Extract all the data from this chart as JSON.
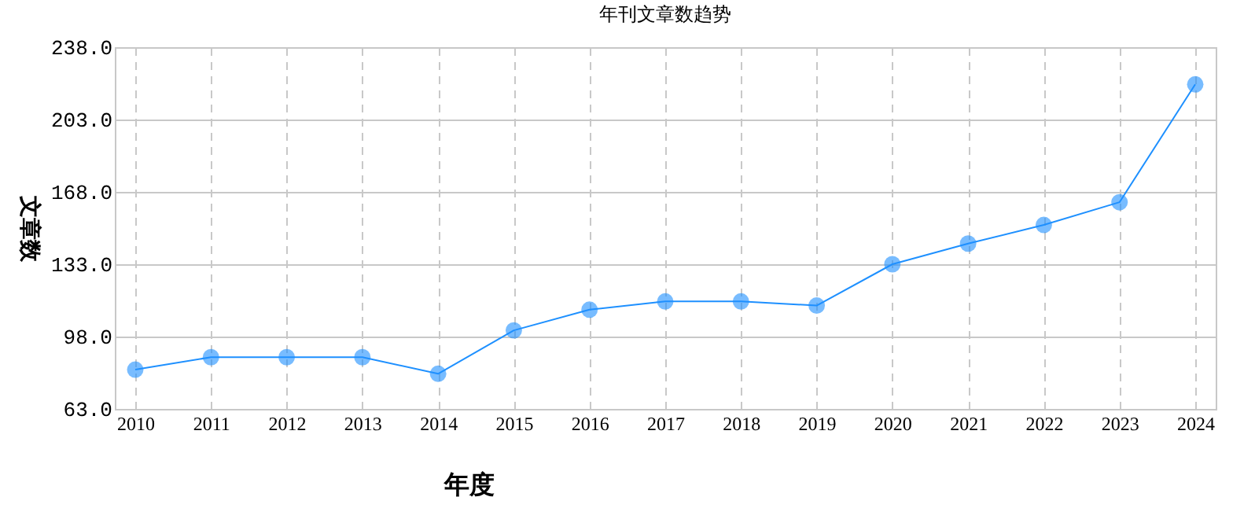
{
  "chart_data": {
    "type": "line",
    "title": "年刊文章数趋势",
    "xlabel": "年度",
    "ylabel": "文章数",
    "categories": [
      "2010",
      "2011",
      "2012",
      "2013",
      "2014",
      "2015",
      "2016",
      "2017",
      "2018",
      "2019",
      "2020",
      "2021",
      "2022",
      "2023",
      "2024"
    ],
    "series": [
      {
        "color": "#1e90ff",
        "values": [
          82,
          88,
          88,
          88,
          80,
          101,
          111,
          115,
          115,
          113,
          133,
          143,
          152,
          163,
          220
        ]
      }
    ],
    "ylim": [
      63,
      238
    ],
    "yticks": [
      {
        "value": 63,
        "label": "63.0"
      },
      {
        "value": 98,
        "label": "98.0"
      },
      {
        "value": 133,
        "label": "133.0"
      },
      {
        "value": 168,
        "label": "168.0"
      },
      {
        "value": 203,
        "label": "203.0"
      },
      {
        "value": 238,
        "label": "238.0"
      }
    ],
    "grid": true,
    "marker": "circle",
    "line_style": "solid"
  }
}
